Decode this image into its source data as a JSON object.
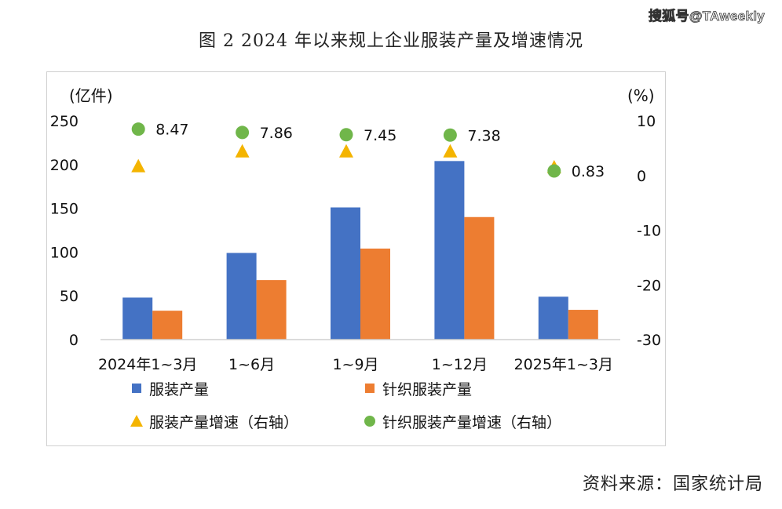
{
  "watermark": "搜狐号@TAweekly",
  "figure_title": "图 2   2024 年以来规上企业服装产量及增速情况",
  "source": "资料来源：国家统计局",
  "chart_data": {
    "type": "bar",
    "title": "",
    "categories": [
      "2024年1~3月",
      "1~6月",
      "1~9月",
      "1~12月",
      "2025年1~3月"
    ],
    "left_axis": {
      "unit_label": "(亿件)",
      "ylim": [
        0,
        250
      ],
      "ticks": [
        0,
        50,
        100,
        150,
        200,
        250
      ]
    },
    "right_axis": {
      "unit_label": "(%)",
      "ylim": [
        -30,
        10
      ],
      "ticks": [
        10,
        0,
        -10,
        -20,
        -30
      ]
    },
    "series": [
      {
        "name": "服装产量",
        "type": "bar",
        "axis": "left",
        "color": "#4472C4",
        "values": [
          48,
          99,
          151,
          204,
          49
        ]
      },
      {
        "name": "针织服装产量",
        "type": "bar",
        "axis": "left",
        "color": "#ED7D31",
        "values": [
          33,
          68,
          104,
          140,
          34
        ]
      },
      {
        "name": "服装产量增速（右轴）",
        "type": "scatter",
        "marker": "triangle",
        "axis": "right",
        "color": "#F4B400",
        "values": [
          1.6,
          4.3,
          4.3,
          4.3,
          1.4
        ]
      },
      {
        "name": "针织服装产量增速（右轴）",
        "type": "scatter",
        "marker": "circle",
        "axis": "right",
        "color": "#70B64A",
        "values": [
          8.47,
          7.86,
          7.45,
          7.38,
          0.83
        ],
        "labels": [
          "8.47",
          "7.86",
          "7.45",
          "7.38",
          "0.83"
        ]
      }
    ],
    "grid": false,
    "legend_position": "bottom"
  }
}
